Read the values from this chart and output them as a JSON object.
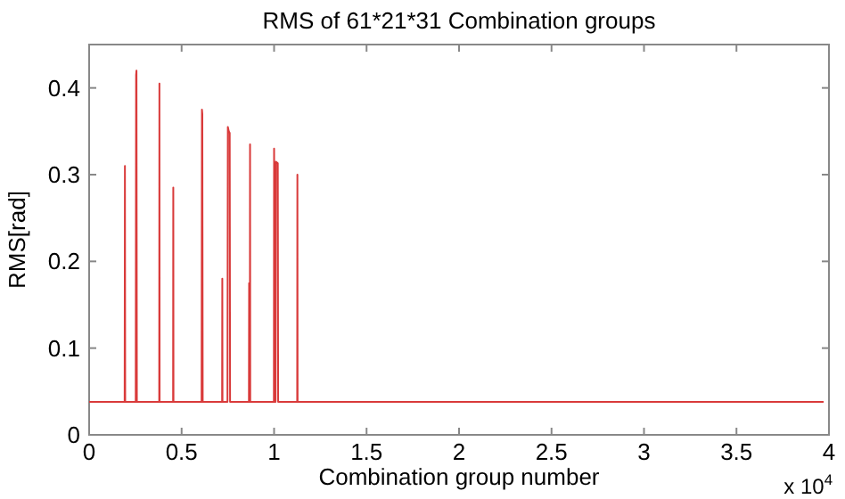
{
  "chart_data": {
    "type": "line",
    "title": "RMS of 61*21*31 Combination groups",
    "xlabel": "Combination group number",
    "ylabel": "RMS[rad]",
    "annotations": [
      "x 10$^{4}$"
    ],
    "xlim": [
      0,
      4
    ],
    "ylim": [
      0,
      0.45
    ],
    "xticks": [
      0,
      0.5,
      1,
      1.5,
      2,
      2.5,
      3,
      3.5,
      4
    ],
    "yticks": [
      0,
      0.1,
      0.2,
      0.3,
      0.4
    ],
    "grid": false,
    "marker": "none",
    "line_style": "solid",
    "series": [
      {
        "color": "#d93a3a",
        "x": [
          0,
          0.192,
          0.1935,
          0.195,
          0.252,
          0.254,
          0.256,
          0.258,
          0.379,
          0.38,
          0.381,
          0.454,
          0.455,
          0.456,
          0.608,
          0.61,
          0.612,
          0.614,
          0.719,
          0.72,
          0.721,
          0.748,
          0.75,
          0.755,
          0.76,
          0.762,
          0.864,
          0.865,
          0.867,
          0.869,
          0.87,
          0.871,
          0.999,
          1,
          1.005,
          1.008,
          1.01,
          1.02,
          1.022,
          1.125,
          1.126,
          1.127,
          3.9711
        ],
        "values": [
          0.038,
          0.038,
          0.31,
          0.038,
          0.038,
          0.415,
          0.42,
          0.038,
          0.038,
          0.405,
          0.038,
          0.038,
          0.285,
          0.038,
          0.038,
          0.375,
          0.37,
          0.038,
          0.038,
          0.18,
          0.038,
          0.038,
          0.355,
          0.35,
          0.348,
          0.038,
          0.038,
          0.175,
          0.038,
          0.038,
          0.335,
          0.038,
          0.038,
          0.33,
          0.038,
          0.038,
          0.315,
          0.313,
          0.038,
          0.038,
          0.3,
          0.038,
          0.038
        ]
      }
    ]
  }
}
